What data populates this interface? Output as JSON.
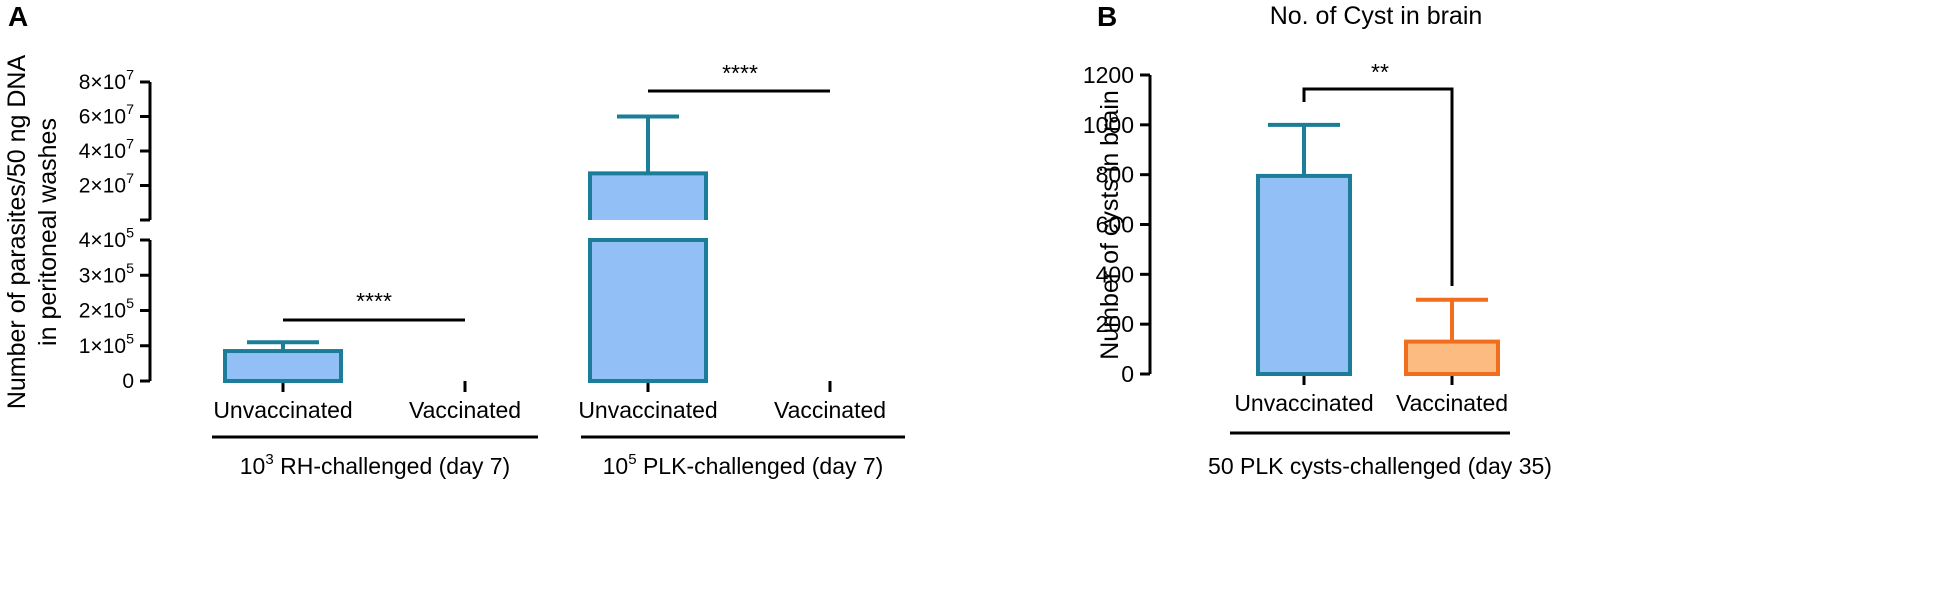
{
  "chart_data": [
    {
      "panel": "A",
      "type": "bar",
      "title": "",
      "ylabel": "Number of parasites/50 ng DNA",
      "ylabel2": "in peritoneal washes",
      "axis_break": true,
      "ylim_lower": [
        0,
        400000
      ],
      "ylim_upper": [
        0,
        80000000
      ],
      "yticks_lower": [
        "0",
        "1×10",
        "2×10",
        "3×10",
        "4×10"
      ],
      "yticks_lower_exp": "5",
      "yticks_upper": [
        "2×10",
        "4×10",
        "6×10",
        "8×10"
      ],
      "yticks_upper_exp": "7",
      "categories": [
        "Unvaccinated",
        "Vaccinated",
        "Unvaccinated",
        "Vaccinated"
      ],
      "values": [
        85000,
        0,
        27000000,
        0
      ],
      "error_upper": [
        110000,
        0,
        60000000,
        0
      ],
      "bar_colors": [
        "#93bff7",
        "#93bff7",
        "#93bff7",
        "#93bff7"
      ],
      "edge_color": "#1b7d98",
      "groups": [
        {
          "prefix": "10",
          "exp": "3",
          "label": " RH-challenged (day 7)"
        },
        {
          "prefix": "10",
          "exp": "5",
          "label": " PLK-challenged (day 7)"
        }
      ],
      "significance": [
        "****",
        "****"
      ]
    },
    {
      "panel": "B",
      "type": "bar",
      "title": "No. of Cyst in brain",
      "ylabel": "Number of cysts in brain",
      "ylim": [
        0,
        1200
      ],
      "yticks": [
        "0",
        "200",
        "400",
        "600",
        "800",
        "1000",
        "1200"
      ],
      "categories": [
        "Unvaccinated",
        "Vaccinated"
      ],
      "values": [
        795,
        130
      ],
      "error_upper": [
        1000,
        298
      ],
      "bar_colors": [
        "#93bff7",
        "#fcbb80"
      ],
      "edge_colors": [
        "#1b7d98",
        "#f06e1e"
      ],
      "group_label": "50 PLK cysts-challenged (day 35)",
      "significance": "**"
    }
  ],
  "panel_labels": [
    "A",
    "B"
  ]
}
